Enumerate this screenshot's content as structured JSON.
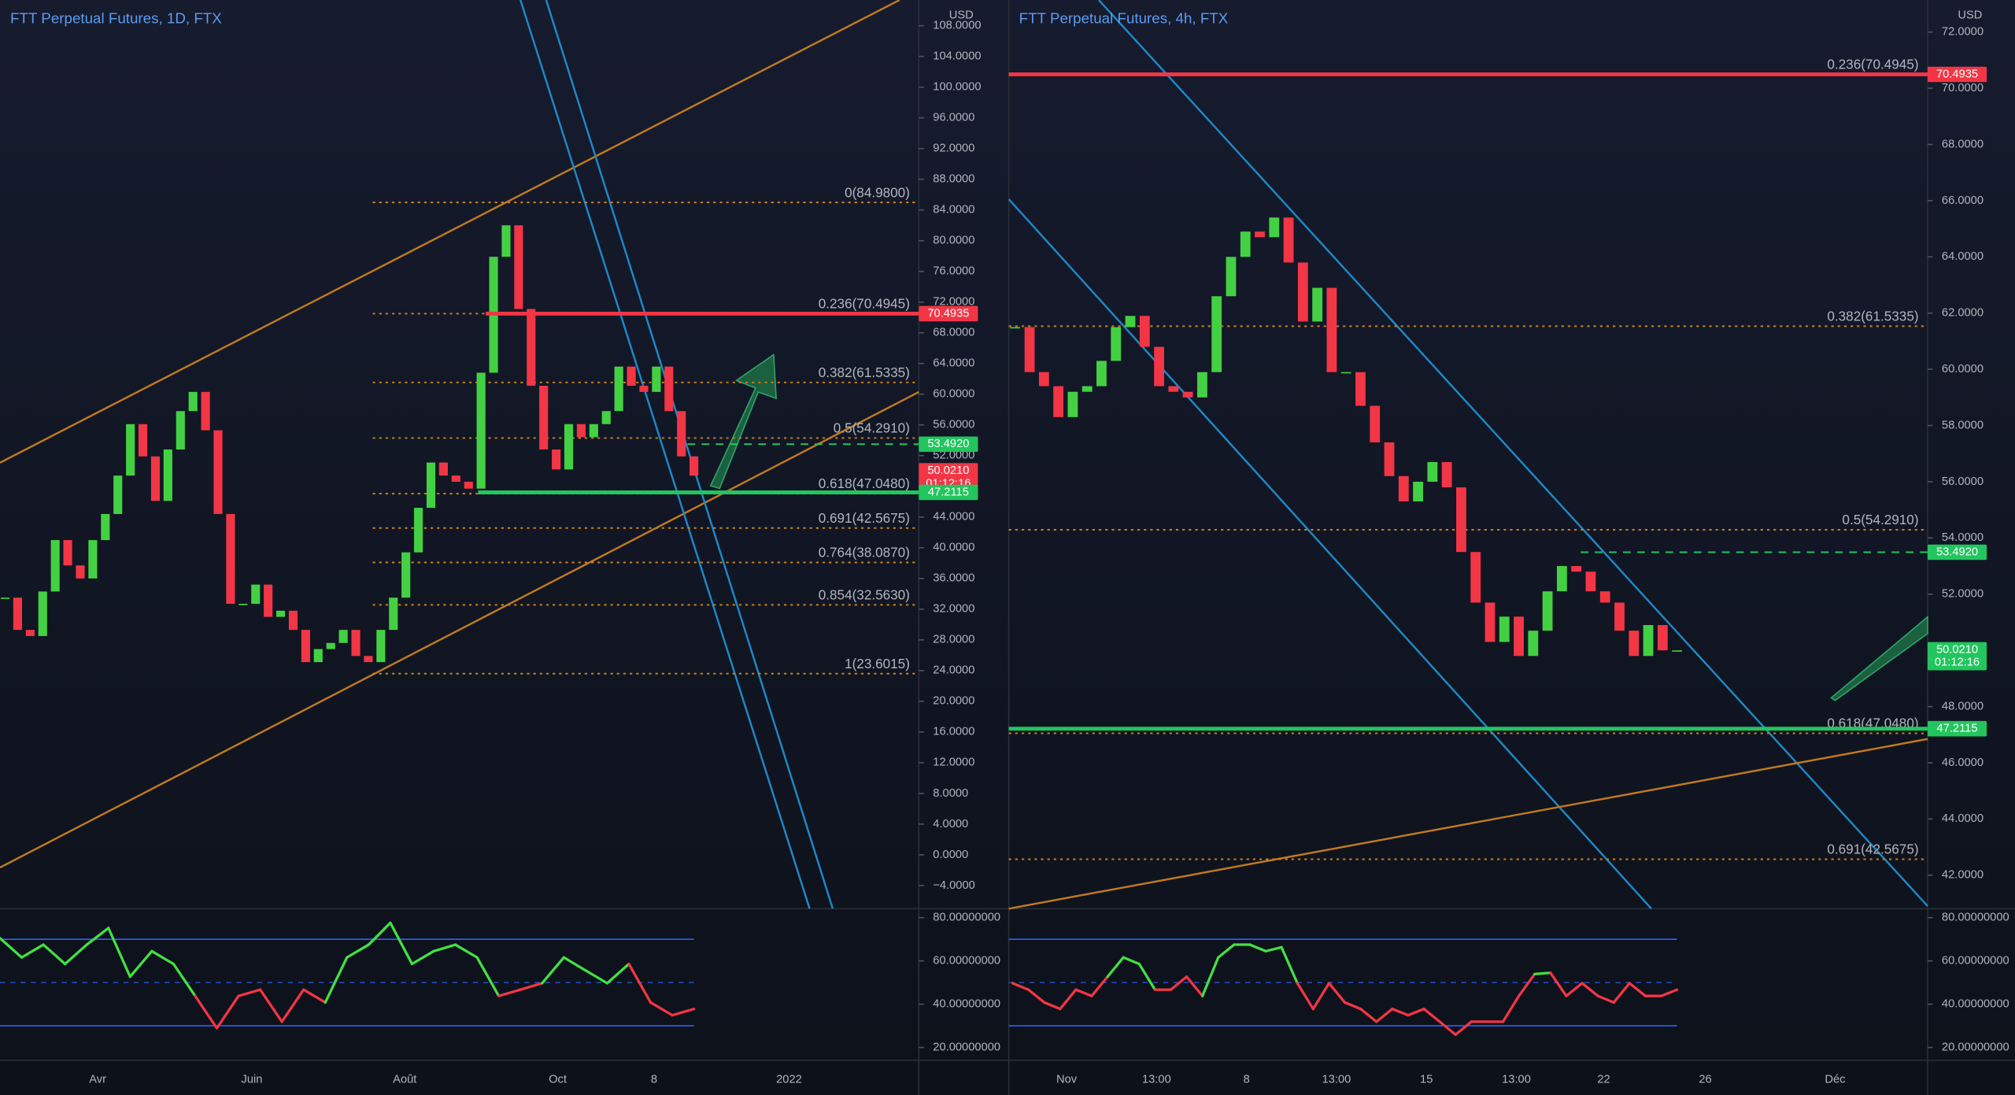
{
  "chart_data": [
    {
      "type": "candlestick",
      "title": "FTT Perpetual Futures, 1D, FTX",
      "currency": "USD",
      "up_color": "#43d143",
      "down_color": "#f23645",
      "level_color": "#c6801d",
      "values": [
        33.5,
        29.3,
        28.5,
        34.3,
        41.0,
        37.7,
        36.0,
        41.0,
        44.4,
        49.4,
        56.1,
        51.9,
        46.1,
        52.8,
        57.8,
        60.3,
        55.3,
        44.4,
        32.7,
        32.7,
        35.2,
        31.0,
        31.8,
        29.3,
        25.1,
        26.8,
        27.6,
        29.3,
        25.9,
        25.1,
        29.3,
        33.5,
        39.4,
        45.2,
        51.1,
        49.4,
        48.6,
        47.7,
        62.8,
        77.9,
        82.0,
        71.1,
        61.1,
        52.8,
        50.2,
        56.1,
        54.4,
        56.1,
        57.8,
        63.6,
        61.1,
        60.3,
        63.6,
        57.8,
        51.9,
        49.4
      ],
      "ylim": [
        -7.01,
        111.35
      ],
      "yticks": [
        {
          "value": -4,
          "label": "−4.0000"
        },
        {
          "value": 0,
          "label": "0.0000"
        },
        {
          "value": 4,
          "label": "4.0000"
        },
        {
          "value": 8,
          "label": "8.0000"
        },
        {
          "value": 12,
          "label": "12.0000"
        },
        {
          "value": 16,
          "label": "16.0000"
        },
        {
          "value": 20,
          "label": "20.0000"
        },
        {
          "value": 24,
          "label": "24.0000"
        },
        {
          "value": 28,
          "label": "28.0000"
        },
        {
          "value": 32,
          "label": "32.0000"
        },
        {
          "value": 36,
          "label": "36.0000"
        },
        {
          "value": 40,
          "label": "40.0000"
        },
        {
          "value": 44,
          "label": "44.0000"
        },
        {
          "value": 48,
          "label": "48.0000"
        },
        {
          "value": 52,
          "label": "52.0000"
        },
        {
          "value": 56,
          "label": "56.0000"
        },
        {
          "value": 60,
          "label": "60.0000"
        },
        {
          "value": 64,
          "label": "64.0000"
        },
        {
          "value": 68,
          "label": "68.0000"
        },
        {
          "value": 72,
          "label": "72.0000"
        },
        {
          "value": 76,
          "label": "76.0000"
        },
        {
          "value": 80,
          "label": "80.0000"
        },
        {
          "value": 84,
          "label": "84.0000"
        },
        {
          "value": 88,
          "label": "88.0000"
        },
        {
          "value": 92,
          "label": "92.0000"
        },
        {
          "value": 96,
          "label": "96.0000"
        },
        {
          "value": 100,
          "label": "100.0000"
        },
        {
          "value": 104,
          "label": "104.0000"
        },
        {
          "value": 108,
          "label": "108.0000"
        }
      ],
      "levels": [
        {
          "value": 84.98,
          "label": "0(84.9800)"
        },
        {
          "value": 70.4945,
          "label": "0.236(70.4945)"
        },
        {
          "value": 61.5335,
          "label": "0.382(61.5335)"
        },
        {
          "value": 54.291,
          "label": "0.5(54.2910)"
        },
        {
          "value": 47.048,
          "label": "0.618(47.0480)"
        },
        {
          "value": 42.5675,
          "label": "0.691(42.5675)"
        },
        {
          "value": 38.087,
          "label": "0.764(38.0870)"
        },
        {
          "value": 32.563,
          "label": "0.854(32.5630)"
        },
        {
          "value": 23.6015,
          "label": "1(23.6015)"
        }
      ],
      "price_labels": [
        {
          "value": 70.4935,
          "label": "70.4935",
          "color": "#f23645",
          "line": "solid"
        },
        {
          "value": 53.492,
          "label": "53.4920",
          "color": "#22c55e",
          "line": "dashed"
        },
        {
          "value": 50.021,
          "label": "50.0210",
          "countdown": "01:12:16",
          "color": "#f23645",
          "line": "none"
        },
        {
          "value": 47.2115,
          "label": "47.2115",
          "color": "#22c55e",
          "line": "solid"
        }
      ],
      "x_labels": [
        "Avr",
        "Juin",
        "Août",
        "Oct",
        "8",
        "2022"
      ],
      "rsi": {
        "values": [
          70.5,
          61.6,
          67.5,
          58.6,
          67.5,
          75.2,
          52.7,
          64.5,
          58.6,
          43.8,
          28.9,
          43.8,
          46.7,
          31.9,
          46.7,
          40.8,
          61.6,
          67.5,
          77.6,
          58.6,
          64.5,
          67.5,
          61.6,
          43.8,
          46.7,
          49.7,
          61.6,
          55.6,
          49.7,
          58.6,
          40.8,
          34.9,
          37.8
        ],
        "ylim": [
          14.06,
          84.16
        ],
        "bands": [
          70,
          50,
          30
        ],
        "band_color": "#2962ff",
        "up_color": "#43e043",
        "down_color": "#f23645",
        "yticks": [
          {
            "value": 80,
            "label": "80.00000000"
          },
          {
            "value": 60,
            "label": "60.00000000"
          },
          {
            "value": 40,
            "label": "40.00000000"
          },
          {
            "value": 20,
            "label": "20.00000000"
          }
        ]
      }
    },
    {
      "type": "candlestick",
      "title": "FTT Perpetual Futures, 4h, FTX",
      "currency": "USD",
      "up_color": "#43d143",
      "down_color": "#f23645",
      "level_color": "#c6801d",
      "values": [
        61.5,
        59.9,
        59.4,
        58.3,
        59.2,
        59.4,
        60.3,
        61.5,
        61.9,
        60.8,
        59.4,
        59.2,
        59.0,
        59.9,
        62.6,
        64.0,
        64.9,
        64.7,
        65.4,
        63.8,
        61.7,
        62.9,
        59.9,
        59.9,
        58.7,
        57.4,
        56.2,
        55.3,
        56.0,
        56.7,
        55.8,
        53.5,
        51.7,
        50.3,
        51.2,
        49.8,
        50.7,
        52.1,
        53.0,
        52.8,
        52.1,
        51.7,
        50.7,
        49.8,
        50.9,
        50.0,
        50.0
      ],
      "ylim": [
        40.81,
        73.14
      ],
      "yticks": [
        {
          "value": 42,
          "label": "42.0000"
        },
        {
          "value": 44,
          "label": "44.0000"
        },
        {
          "value": 46,
          "label": "46.0000"
        },
        {
          "value": 48,
          "label": "48.0000"
        },
        {
          "value": 50,
          "label": "50.0000"
        },
        {
          "value": 52,
          "label": "52.0000"
        },
        {
          "value": 54,
          "label": "54.0000"
        },
        {
          "value": 56,
          "label": "56.0000"
        },
        {
          "value": 58,
          "label": "58.0000"
        },
        {
          "value": 60,
          "label": "60.0000"
        },
        {
          "value": 62,
          "label": "62.0000"
        },
        {
          "value": 64,
          "label": "64.0000"
        },
        {
          "value": 66,
          "label": "66.0000"
        },
        {
          "value": 68,
          "label": "68.0000"
        },
        {
          "value": 70,
          "label": "70.0000"
        },
        {
          "value": 72,
          "label": "72.0000"
        }
      ],
      "levels": [
        {
          "value": 70.4945,
          "label": "0.236(70.4945)"
        },
        {
          "value": 61.5335,
          "label": "0.382(61.5335)"
        },
        {
          "value": 54.291,
          "label": "0.5(54.2910)"
        },
        {
          "value": 47.048,
          "label": "0.618(47.0480)"
        },
        {
          "value": 42.5675,
          "label": "0.691(42.5675)"
        }
      ],
      "price_labels": [
        {
          "value": 70.4935,
          "label": "70.4935",
          "color": "#f23645",
          "line": "solid"
        },
        {
          "value": 53.492,
          "label": "53.4920",
          "color": "#22c55e",
          "line": "dashed"
        },
        {
          "value": 50.021,
          "label": "50.0210",
          "countdown": "01:12:16",
          "color": "#22c55e",
          "line": "none"
        },
        {
          "value": 47.2115,
          "label": "47.2115",
          "color": "#22c55e",
          "line": "solid"
        }
      ],
      "x_labels": [
        "Nov",
        "13:00",
        "8",
        "13:00",
        "15",
        "13:00",
        "22",
        "26",
        "Déc"
      ],
      "rsi": {
        "values": [
          49.7,
          46.7,
          40.8,
          37.8,
          46.7,
          43.8,
          52.7,
          61.6,
          58.6,
          46.7,
          46.7,
          52.7,
          43.8,
          61.6,
          67.5,
          67.5,
          64.5,
          66.3,
          49.7,
          37.8,
          49.7,
          40.8,
          37.8,
          31.9,
          37.8,
          34.9,
          37.8,
          31.9,
          25.9,
          31.9,
          31.9,
          31.9,
          43.8,
          53.9,
          54.5,
          43.8,
          49.7,
          43.8,
          40.8,
          49.7,
          43.8,
          43.8,
          46.7
        ],
        "ylim": [
          14.06,
          84.16
        ],
        "bands": [
          70,
          50,
          30
        ],
        "band_color": "#2962ff",
        "up_color": "#43e043",
        "down_color": "#f23645",
        "yticks": [
          {
            "value": 80,
            "label": "80.00000000"
          },
          {
            "value": 60,
            "label": "60.00000000"
          },
          {
            "value": 40,
            "label": "40.00000000"
          },
          {
            "value": 20,
            "label": "20.00000000"
          }
        ]
      }
    }
  ]
}
